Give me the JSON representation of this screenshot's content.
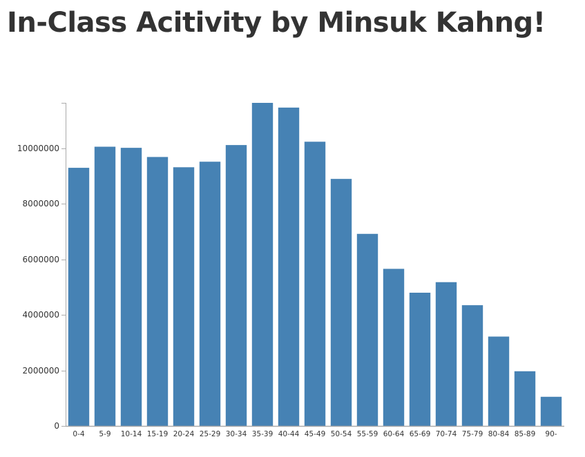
{
  "page": {
    "title": "In-Class Acitivity by Minsuk Kahng!"
  },
  "colors": {
    "bar": "#4682b4",
    "axis": "#aaaaaa",
    "text": "#333333"
  },
  "chart_data": {
    "type": "bar",
    "title": "",
    "xlabel": "",
    "ylabel": "",
    "categories": [
      "0-4",
      "5-9",
      "10-14",
      "15-19",
      "20-24",
      "25-29",
      "30-34",
      "35-39",
      "40-44",
      "45-49",
      "50-54",
      "55-59",
      "60-64",
      "65-69",
      "70-74",
      "75-79",
      "80-84",
      "85-89",
      "90-"
    ],
    "values": [
      9300000,
      10060000,
      10020000,
      9690000,
      9320000,
      9520000,
      10120000,
      11640000,
      11470000,
      10240000,
      8900000,
      6920000,
      5660000,
      4800000,
      5180000,
      4350000,
      3220000,
      1970000,
      1050000
    ],
    "ylim": [
      0,
      11640000
    ],
    "y_ticks": [
      0,
      2000000,
      4000000,
      6000000,
      8000000,
      10000000
    ],
    "y_tick_labels": [
      "0",
      "2000000",
      "4000000",
      "6000000",
      "8000000",
      "10000000"
    ],
    "grid": false,
    "legend": "none"
  }
}
